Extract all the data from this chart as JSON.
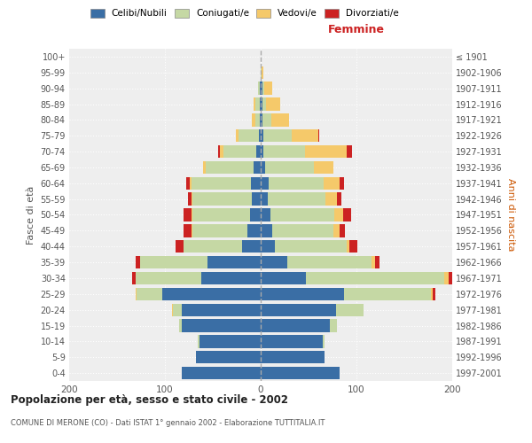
{
  "age_groups": [
    "0-4",
    "5-9",
    "10-14",
    "15-19",
    "20-24",
    "25-29",
    "30-34",
    "35-39",
    "40-44",
    "45-49",
    "50-54",
    "55-59",
    "60-64",
    "65-69",
    "70-74",
    "75-79",
    "80-84",
    "85-89",
    "90-94",
    "95-99",
    "100+"
  ],
  "birth_years": [
    "1997-2001",
    "1992-1996",
    "1987-1991",
    "1982-1986",
    "1977-1981",
    "1972-1976",
    "1967-1971",
    "1962-1966",
    "1957-1961",
    "1952-1956",
    "1947-1951",
    "1942-1946",
    "1937-1941",
    "1932-1936",
    "1927-1931",
    "1922-1926",
    "1917-1921",
    "1912-1916",
    "1907-1911",
    "1902-1906",
    "≤ 1901"
  ],
  "male": {
    "celibi": [
      82,
      68,
      64,
      82,
      82,
      103,
      62,
      56,
      19,
      14,
      11,
      9,
      10,
      7,
      5,
      2,
      1,
      1,
      1,
      0,
      0
    ],
    "coniugati": [
      0,
      0,
      2,
      3,
      10,
      27,
      69,
      70,
      62,
      57,
      60,
      62,
      62,
      50,
      34,
      21,
      5,
      5,
      2,
      0,
      0
    ],
    "vedovi": [
      0,
      0,
      0,
      0,
      1,
      1,
      0,
      0,
      0,
      1,
      1,
      1,
      2,
      3,
      4,
      3,
      3,
      1,
      0,
      0,
      0
    ],
    "divorziati": [
      0,
      0,
      0,
      0,
      0,
      0,
      3,
      5,
      8,
      9,
      9,
      4,
      4,
      0,
      1,
      0,
      0,
      0,
      0,
      0,
      0
    ]
  },
  "female": {
    "nubili": [
      82,
      67,
      65,
      72,
      79,
      87,
      47,
      28,
      15,
      12,
      10,
      7,
      8,
      5,
      3,
      3,
      2,
      2,
      2,
      0,
      0
    ],
    "coniugate": [
      0,
      0,
      2,
      8,
      28,
      91,
      145,
      88,
      75,
      64,
      67,
      61,
      58,
      51,
      43,
      29,
      9,
      4,
      2,
      1,
      0
    ],
    "vedove": [
      0,
      0,
      0,
      0,
      0,
      2,
      4,
      3,
      3,
      6,
      9,
      12,
      16,
      20,
      44,
      28,
      19,
      14,
      8,
      2,
      0
    ],
    "divorziate": [
      0,
      0,
      0,
      0,
      0,
      2,
      8,
      5,
      8,
      6,
      8,
      4,
      5,
      0,
      5,
      1,
      0,
      0,
      0,
      0,
      0
    ]
  },
  "colors": {
    "celibi": "#3a6ea5",
    "coniugati": "#c5d8a4",
    "vedovi": "#f5c96a",
    "divorziati": "#cc2222"
  },
  "title": "Popolazione per età, sesso e stato civile - 2002",
  "subtitle": "COMUNE DI MERONE (CO) - Dati ISTAT 1° gennaio 2002 - Elaborazione TUTTITALIA.IT",
  "xlabel_right": "Femmine",
  "ylabel_left": "Fasce di età",
  "ylabel_right": "Anni di nascita",
  "xlim": 200,
  "legend_labels": [
    "Celibi/Nubili",
    "Coniugati/e",
    "Vedovi/e",
    "Divorziati/e"
  ],
  "background_color": "#ffffff",
  "plot_bg_color": "#eeeeee",
  "grid_color": "#ffffff"
}
